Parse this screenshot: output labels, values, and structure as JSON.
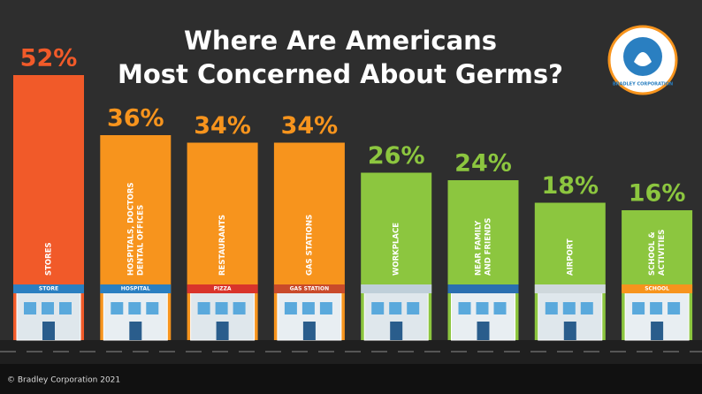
{
  "chart_data": {
    "type": "bar",
    "title": [
      "Where Are Americans",
      "Most Concerned About Germs?"
    ],
    "categories": [
      "STORES",
      [
        "HOSPITALS, DOCTORS",
        "DENTAL OFFICES"
      ],
      "RESTAURANTS",
      "GAS STATIONS",
      "WORKPLACE",
      [
        "NEAR FAMILY",
        "AND FRIENDS"
      ],
      "AIRPORT",
      [
        "SCHOOL &",
        "ACTIVITIES"
      ]
    ],
    "values": [
      52,
      36,
      34,
      34,
      26,
      24,
      18,
      16
    ],
    "value_labels": [
      "52%",
      "36%",
      "34%",
      "34%",
      "26%",
      "24%",
      "18%",
      "16%"
    ],
    "colors": [
      "#f15a29",
      "#f7941d",
      "#f7941d",
      "#f7941d",
      "#8cc63f",
      "#8cc63f",
      "#8cc63f",
      "#8cc63f"
    ],
    "building_labels": [
      "STORE",
      "HOSPITAL",
      "PIZZA",
      "GAS STATION",
      null,
      null,
      null,
      "SCHOOL"
    ],
    "logo_text": "BRADLEY CORPORATION",
    "footer": "© Bradley Corporation 2021"
  }
}
